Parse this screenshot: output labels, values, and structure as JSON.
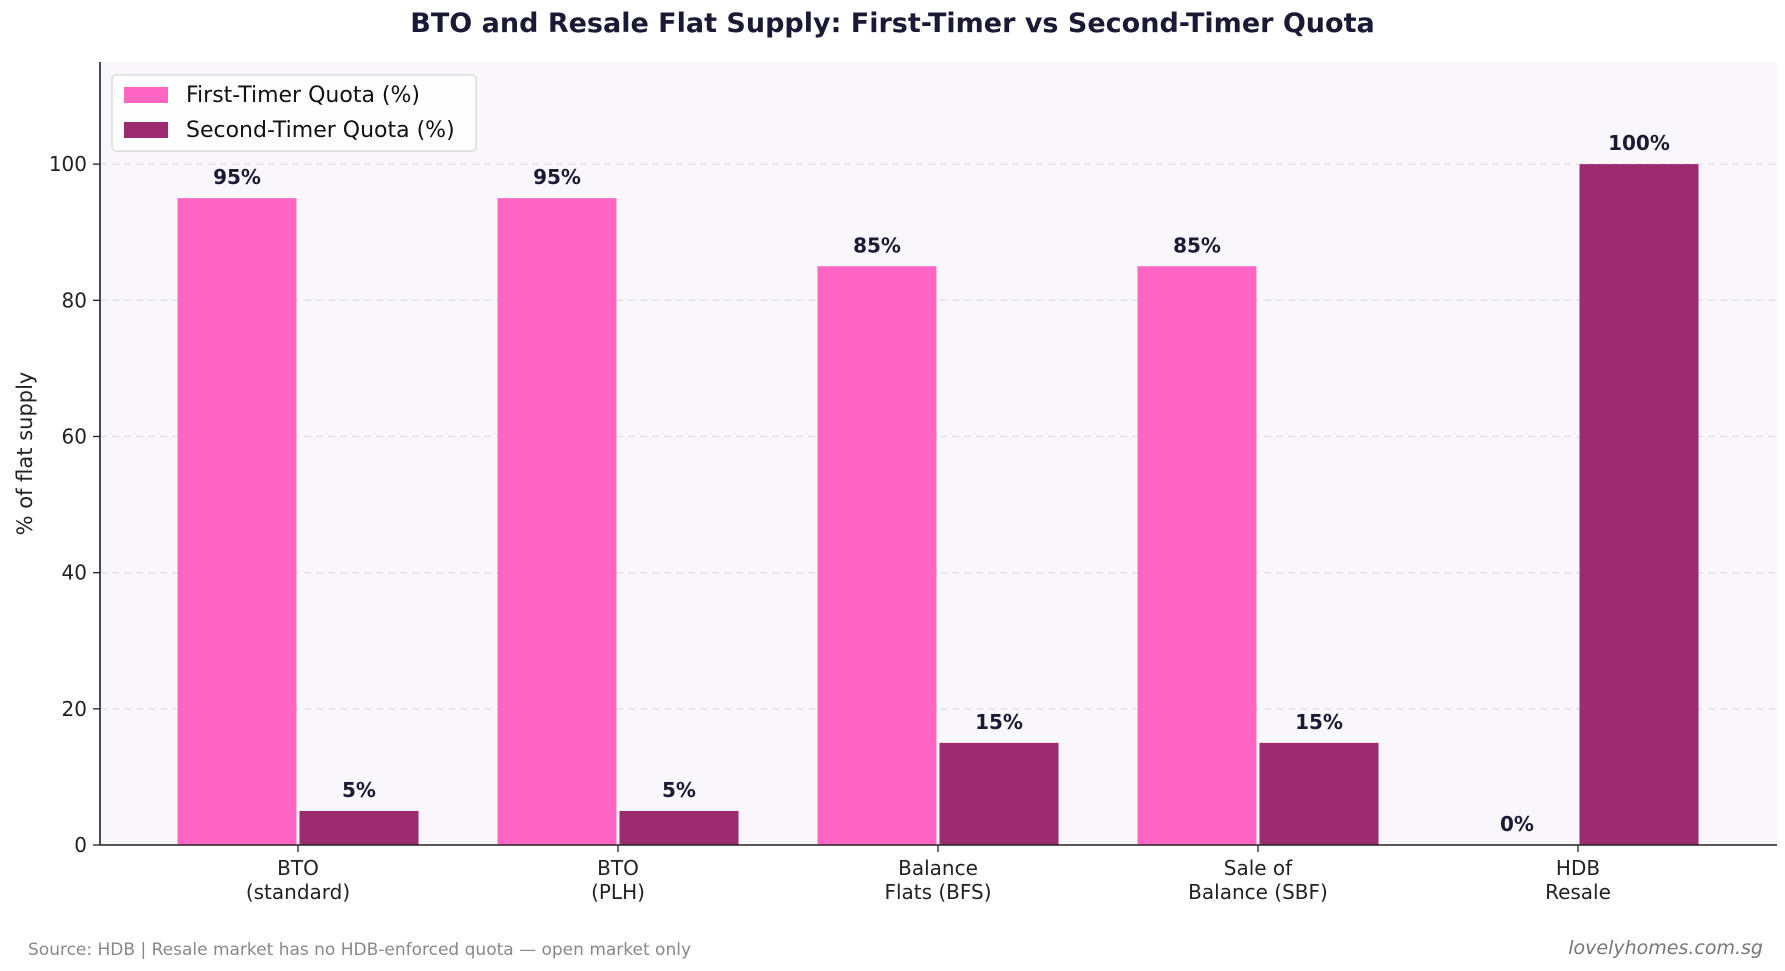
{
  "chart_data": {
    "type": "bar",
    "title": "BTO and Resale Flat Supply: First-Timer vs Second-Timer Quota",
    "ylabel": "% of flat supply",
    "xlabel": "",
    "ylim": [
      0,
      115
    ],
    "yticks": [
      0,
      20,
      40,
      60,
      80,
      100
    ],
    "grid": true,
    "legend_position": "top-left",
    "categories": [
      [
        "BTO",
        "(standard)"
      ],
      [
        "BTO",
        "(PLH)"
      ],
      [
        "Balance",
        "Flats (BFS)"
      ],
      [
        "Sale of",
        "Balance (SBF)"
      ],
      [
        "HDB",
        "Resale"
      ]
    ],
    "series": [
      {
        "name": "First-Timer Quota (%)",
        "color": "#ff66c4",
        "values": [
          95,
          95,
          85,
          85,
          0
        ],
        "labels": [
          "95%",
          "95%",
          "85%",
          "85%",
          "0%"
        ]
      },
      {
        "name": "Second-Timer Quota (%)",
        "color": "#9b2a6e",
        "values": [
          5,
          5,
          15,
          15,
          100
        ],
        "labels": [
          "5%",
          "5%",
          "15%",
          "15%",
          "100%"
        ]
      }
    ]
  },
  "footer": {
    "source": "Source: HDB | Resale market has no HDB-enforced quota — open market only",
    "brand": "lovelyhomes.com.sg"
  },
  "colors": {
    "plot_background": "#f9f7fb",
    "grid": "#e3dce8",
    "title": "#1a1a35"
  }
}
